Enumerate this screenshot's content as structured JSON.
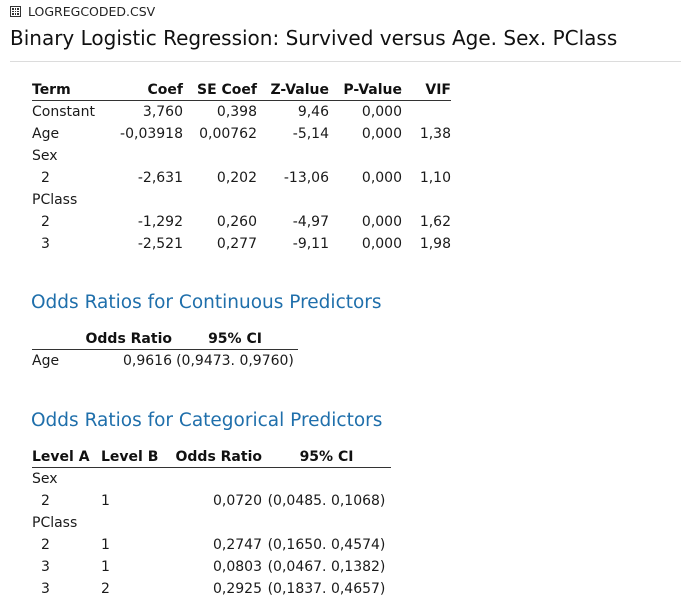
{
  "file": {
    "name": "LOGREGCODED.CSV",
    "icon": "table-grid-icon"
  },
  "title": "Binary Logistic Regression: Survived versus Age. Sex. PClass",
  "coefficients": {
    "headers": [
      "Term",
      "Coef",
      "SE Coef",
      "Z-Value",
      "P-Value",
      "VIF"
    ],
    "rows": [
      [
        "Constant",
        "3,760",
        "0,398",
        "9,46",
        "0,000",
        ""
      ],
      [
        "Age",
        "-0,03918",
        "0,00762",
        "-5,14",
        "0,000",
        "1,38"
      ],
      [
        "Sex",
        "",
        "",
        "",
        "",
        ""
      ],
      [
        "  2",
        "-2,631",
        "0,202",
        "-13,06",
        "0,000",
        "1,10"
      ],
      [
        "PClass",
        "",
        "",
        "",
        "",
        ""
      ],
      [
        "  2",
        "-1,292",
        "0,260",
        "-4,97",
        "0,000",
        "1,62"
      ],
      [
        "  3",
        "-2,521",
        "0,277",
        "-9,11",
        "0,000",
        "1,98"
      ]
    ]
  },
  "continuous": {
    "title": "Odds Ratios for Continuous Predictors",
    "headers": [
      "",
      "Odds Ratio",
      "95% CI"
    ],
    "rows": [
      [
        "Age",
        "0,9616",
        "(0,9473. 0,9760)"
      ]
    ]
  },
  "categorical": {
    "title": "Odds Ratios for Categorical Predictors",
    "headers": [
      "Level A",
      "Level B",
      "Odds Ratio",
      "95% CI"
    ],
    "rows": [
      [
        "Sex",
        "",
        "",
        ""
      ],
      [
        "  2",
        "1",
        "0,0720",
        "(0,0485. 0,1068)"
      ],
      [
        "PClass",
        "",
        "",
        ""
      ],
      [
        "  2",
        "1",
        "0,2747",
        "(0,1650. 0,4574)"
      ],
      [
        "  3",
        "1",
        "0,0803",
        "(0,0467. 0,1382)"
      ],
      [
        "  3",
        "2",
        "0,2925",
        "(0,1837. 0,4657)"
      ]
    ]
  }
}
